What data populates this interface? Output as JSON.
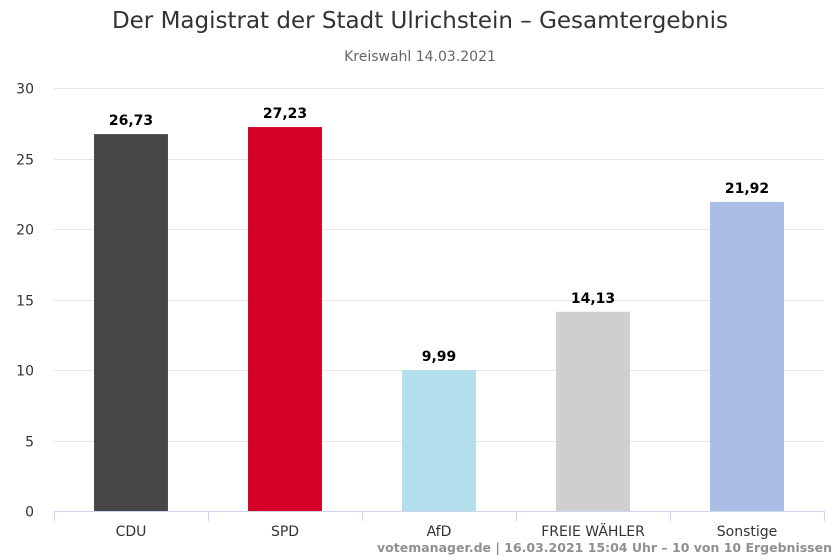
{
  "title": "Der Magistrat der Stadt Ulrichstein – Gesamtergebnis",
  "subtitle": "Kreiswahl 14.03.2021",
  "credits": "votemanager.de | 16.03.2021 15:04 Uhr – 10 von 10 Ergebnissen",
  "chart_data": {
    "type": "bar",
    "title": "Der Magistrat der Stadt Ulrichstein – Gesamtergebnis",
    "subtitle": "Kreiswahl 14.03.2021",
    "categories": [
      "CDU",
      "SPD",
      "AfD",
      "FREIE WÄHLER",
      "Sonstige"
    ],
    "values": [
      26.73,
      27.23,
      9.99,
      14.13,
      21.92
    ],
    "value_labels": [
      "26,73",
      "27,23",
      "9,99",
      "14,13",
      "21,92"
    ],
    "colors": [
      "#474747",
      "#d50025",
      "#b3dfec",
      "#cfcfcf",
      "#a9bde5"
    ],
    "ylim": [
      0,
      30
    ],
    "yticks": [
      0,
      5,
      10,
      15,
      20,
      25,
      30
    ],
    "grid": true,
    "legend": "none",
    "xlabel": "",
    "ylabel": ""
  }
}
